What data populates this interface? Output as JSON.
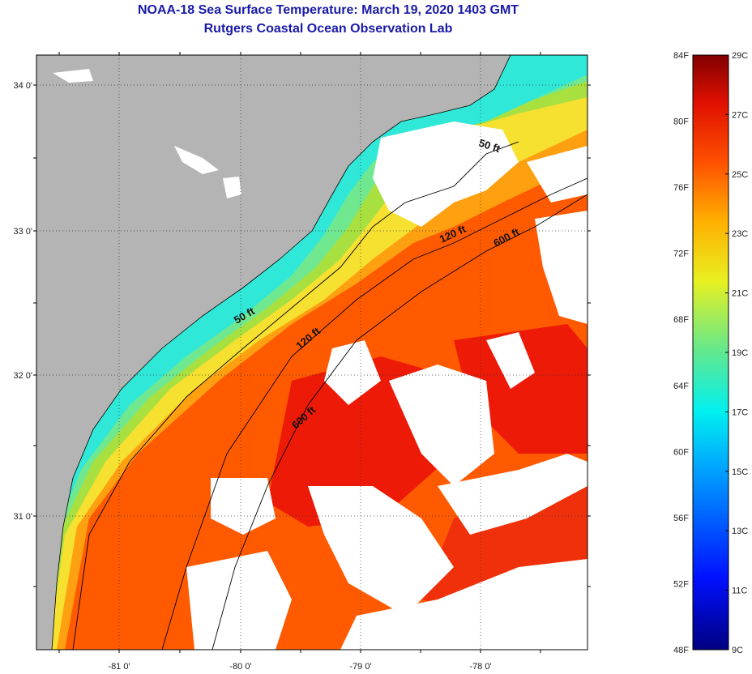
{
  "title": "NOAA-18 Sea Surface Temperature:  March 19, 2020 1403 GMT",
  "subtitle": "Rutgers Coastal Ocean Observation Lab",
  "map": {
    "lat_labels": [
      "34 0'",
      "33 0'",
      "32 0'",
      "31 0'"
    ],
    "lon_labels": [
      "-81 0'",
      "-80 0'",
      "-79 0'",
      "-78 0'"
    ],
    "contours": [
      "50 ft",
      "120 ft",
      "600 ft",
      "50 ft",
      "120 ft",
      "600 ft"
    ],
    "colors": {
      "land": "#b4b4b4",
      "cloud": "#ffffff",
      "ocean_warm": "#ff5a00",
      "ocean_hot": "#ee1a08",
      "ocean_mid": "#ffb020",
      "ocean_cool": "#a8e040",
      "ocean_cold": "#30e8d8"
    }
  },
  "colorbar": {
    "fahrenheit": [
      "84F",
      "80F",
      "76F",
      "72F",
      "68F",
      "64F",
      "60F",
      "56F",
      "52F",
      "48F"
    ],
    "celsius": [
      "29C",
      "27C",
      "25C",
      "23C",
      "21C",
      "19C",
      "17C",
      "15C",
      "13C",
      "11C",
      "9C"
    ],
    "f_range": [
      48,
      84
    ],
    "c_range": [
      9,
      29
    ]
  }
}
